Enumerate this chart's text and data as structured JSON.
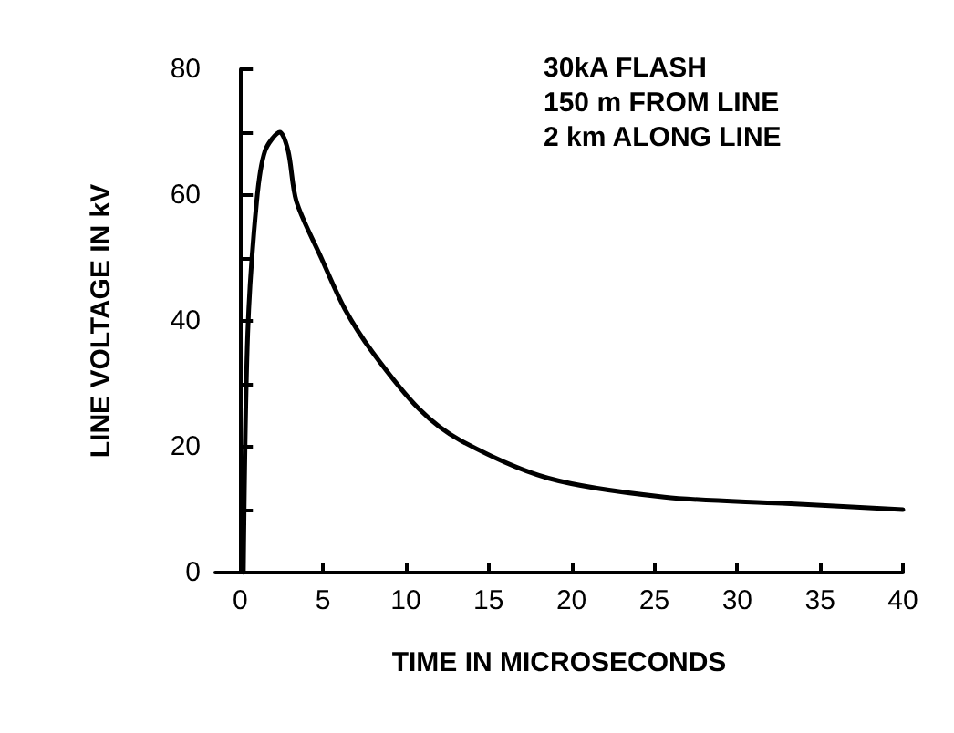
{
  "chart_data": {
    "type": "line",
    "xlabel": "TIME IN MICROSECONDS",
    "ylabel": "LINE VOLTAGE IN kV",
    "annotations": [
      "30kA FLASH",
      "150 m FROM LINE",
      "2 km ALONG LINE"
    ],
    "x": [
      0.2,
      0.46,
      1.0,
      1.5,
      2.4,
      2.9,
      3.4,
      4.9,
      6.3,
      8.0,
      10.8,
      13.3,
      18.6,
      25.6,
      32.7,
      40
    ],
    "series": [
      {
        "color": "#000000",
        "values": [
          0,
          38,
          59,
          67,
          70,
          67,
          59,
          50,
          42,
          35,
          26,
          21,
          15,
          12,
          11,
          10
        ]
      }
    ],
    "xlim": [
      -1.5,
      40
    ],
    "xticks": [
      0,
      5,
      10,
      15,
      20,
      25,
      30,
      35,
      40
    ],
    "ylim": [
      0,
      80
    ],
    "yticks": [
      0,
      {
        "value": 10,
        "label": null
      },
      20,
      {
        "value": 30,
        "label": null
      },
      40,
      {
        "value": 50,
        "label": null
      },
      60,
      {
        "value": 70,
        "label": null
      },
      80
    ],
    "grid": false,
    "marker": "none",
    "line_style": "solid"
  }
}
